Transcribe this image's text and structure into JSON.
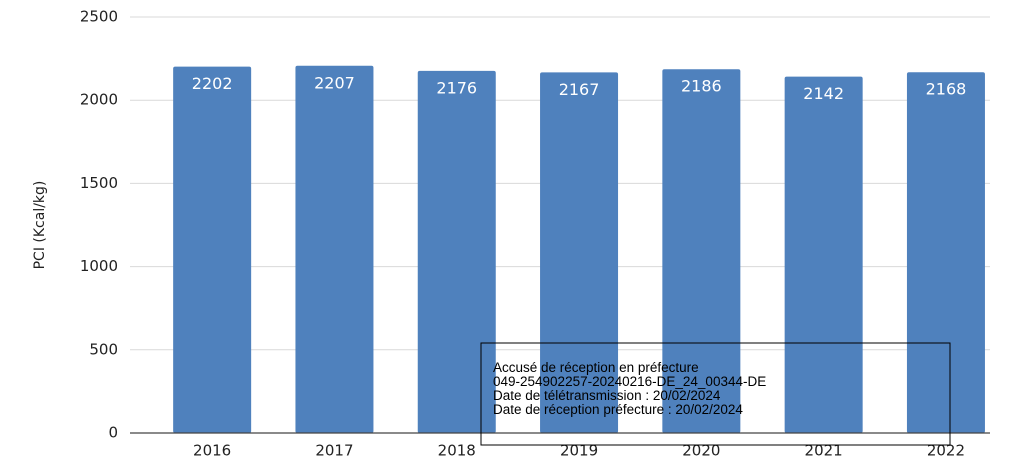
{
  "chart_data": {
    "type": "bar",
    "y_label": "PCI (Kcal/kg)",
    "categories": [
      "2016",
      "2017",
      "2018",
      "2019",
      "2020",
      "2021",
      "2022"
    ],
    "values": [
      2202,
      2207,
      2176,
      2167,
      2186,
      2142,
      2168
    ],
    "color": "#4f81bd",
    "ylim": [
      0,
      2500
    ],
    "yticks": [
      0,
      500,
      1000,
      1500,
      2000,
      2500
    ],
    "grid": true,
    "annotations": [
      "Accusé de réception en préfecture",
      "049-254902257-20240216-DE_24_00344-DE",
      "Date de télétransmission : 20/02/2024",
      "Date de réception préfecture : 20/02/2024"
    ]
  }
}
